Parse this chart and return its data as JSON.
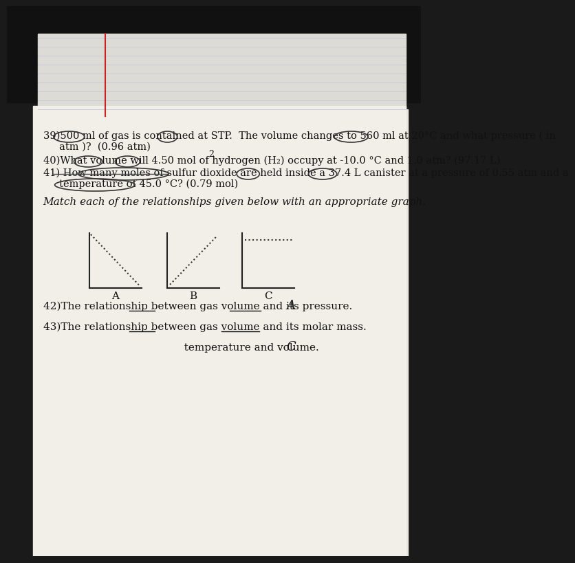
{
  "background_color": "#1a1a1a",
  "paper_color": "#f0ede8",
  "lined_paper_color": "#e8e5e0",
  "line_color": "#c8c8d8",
  "red_line_color": "#cc2222",
  "text_color": "#111111",
  "title_text": "Match each of the relationships given below with an appropriate graph.",
  "q39": "39)500 ml of gas is contained at STP.  The volume changes to 560 ml at 20°C and what pressure ( in\n     atm )?  (0.96 atm)",
  "q40": "40)What volume will 4.50 mol of hydrogen (H₂) occupy at -10.0 °C and 1.0 atm? (97.17 L)",
  "q41": "41) How many moles of sulfur dioxide are held inside a 37.4 L canister at a pressure of 0.55 atm and a\n     temperature of 45.0 °C? (0.79 mol)",
  "q42": "42)The relationship between gas volume and its pressure.",
  "q42_answer": "A",
  "q43": "43)The relationship between gas volume and its molar mass.",
  "q44_partial": "temperature and volume.",
  "q44_answer": "C",
  "graph_labels": [
    "A",
    "B",
    "C"
  ]
}
